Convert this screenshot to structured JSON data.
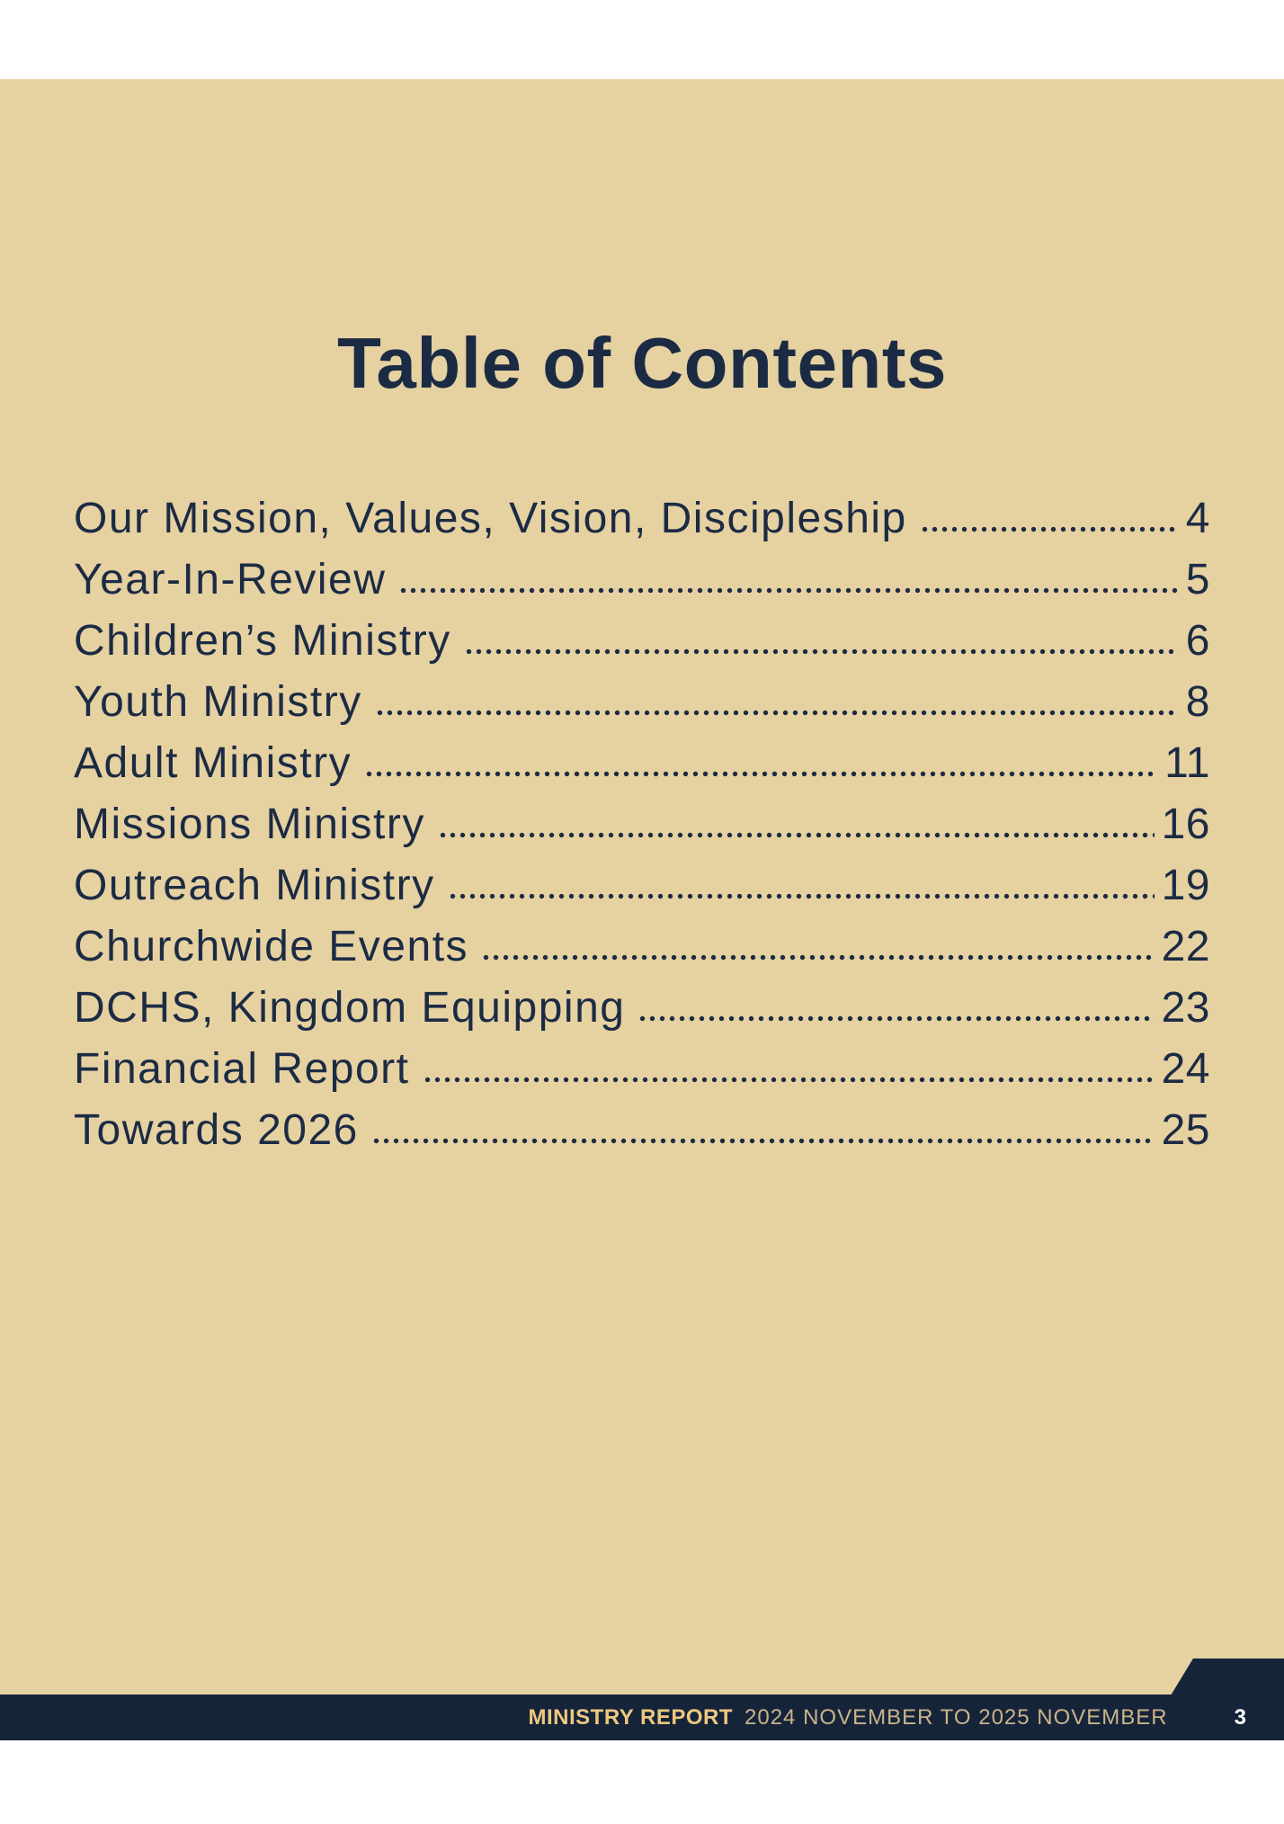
{
  "title": "Table of Contents",
  "toc": [
    {
      "label": "Our Mission, Values, Vision, Discipleship",
      "page": "4"
    },
    {
      "label": "Year-In-Review",
      "page": "5"
    },
    {
      "label": "Children’s Ministry",
      "page": "6"
    },
    {
      "label": "Youth Ministry",
      "page": "8"
    },
    {
      "label": "Adult Ministry",
      "page": "11"
    },
    {
      "label": "Missions Ministry",
      "page": "16"
    },
    {
      "label": "Outreach Ministry",
      "page": "19"
    },
    {
      "label": "Churchwide Events",
      "page": "22"
    },
    {
      "label": "DCHS, Kingdom Equipping",
      "page": "23"
    },
    {
      "label": "Financial Report",
      "page": "24"
    },
    {
      "label": "Towards 2026",
      "page": "25"
    }
  ],
  "footer": {
    "report_label": "MINISTRY REPORT",
    "report_period": "2024 NOVEMBER TO 2025 NOVEMBER",
    "page_number": "3"
  },
  "colors": {
    "page_background": "#e6d1a1",
    "ink": "#1c2b44",
    "footer_bar": "#16243a",
    "footer_gold": "#eec87f",
    "footer_muted_gold": "#c9b489",
    "page_number_white": "#ffffff",
    "margin_white": "#ffffff"
  }
}
